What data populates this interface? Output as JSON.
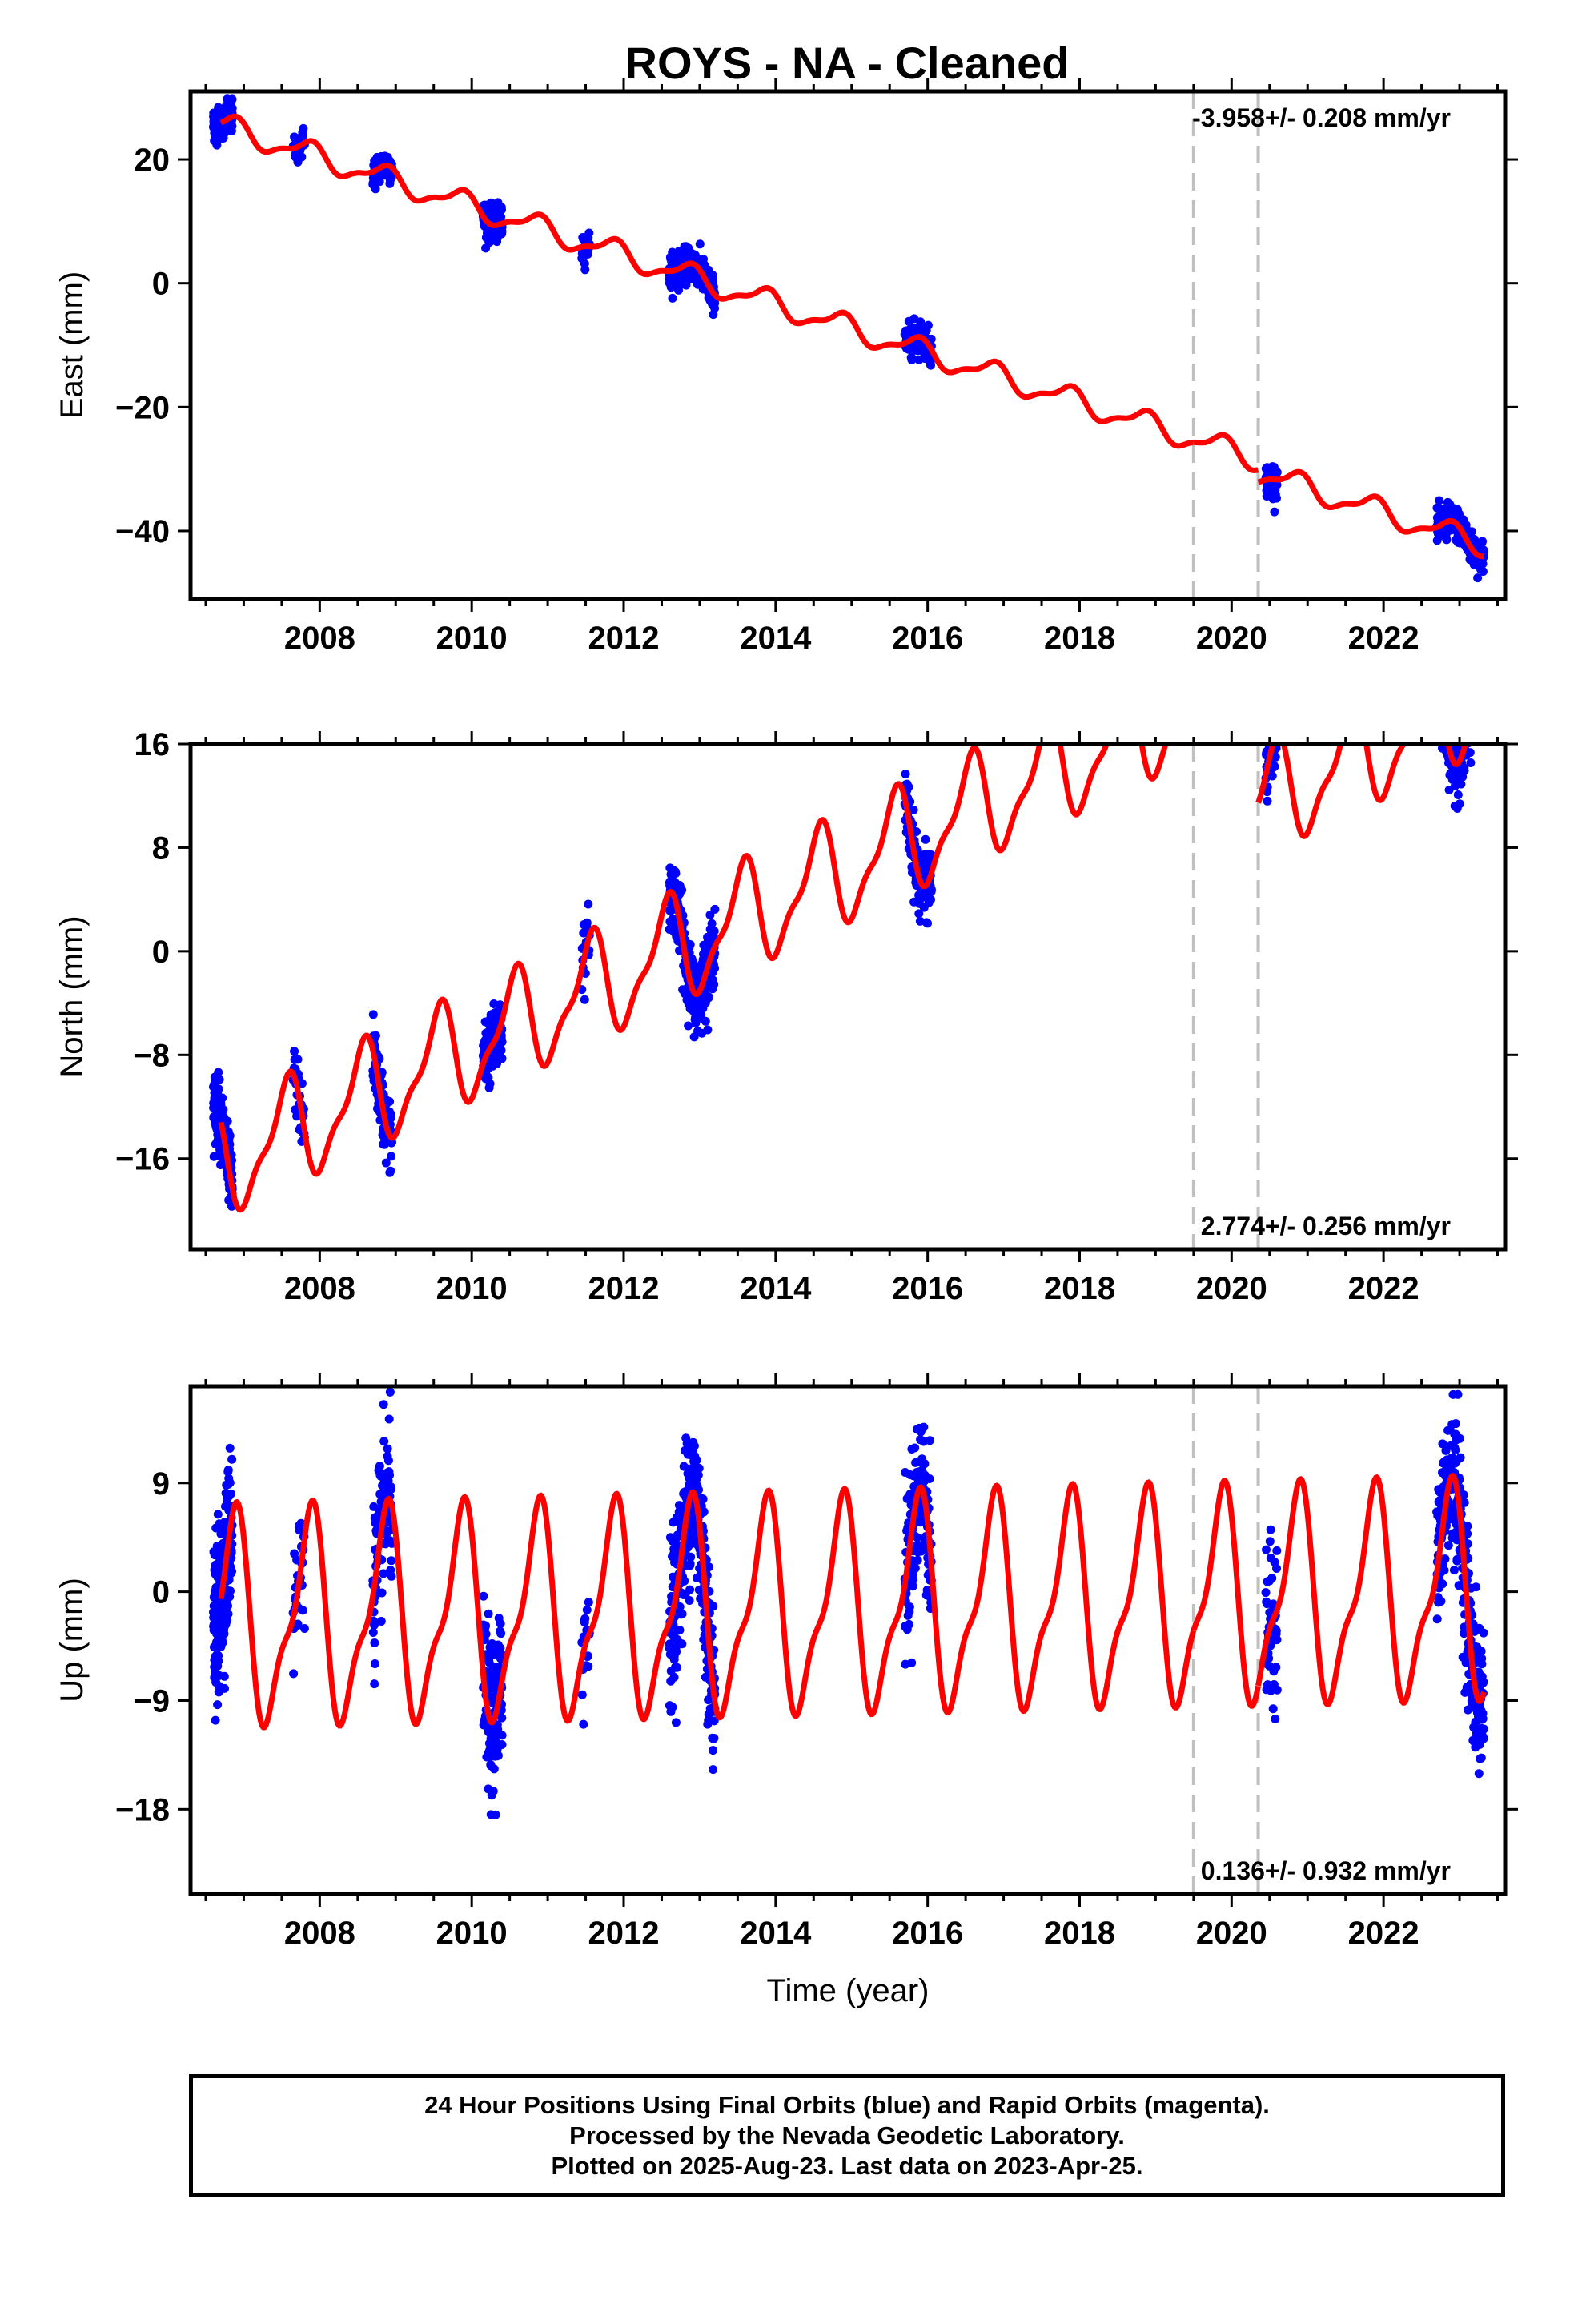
{
  "title": "ROYS  - NA - Cleaned",
  "footer": {
    "lines": [
      "24 Hour Positions Using Final Orbits (blue) and Rapid Orbits (magenta).",
      "Processed by the Nevada Geodetic Laboratory.",
      "Plotted on 2025-Aug-23. Last data on 2023-Apr-25."
    ]
  },
  "colors": {
    "data": "#0000ff",
    "model": "#ff0000",
    "step_line": "#c0c0c0",
    "frame": "#000000"
  },
  "chart_data": [
    {
      "type": "scatter",
      "component": "East",
      "ylabel": "East (mm)",
      "xlabel": "",
      "rate_text": "-3.958+/- 0.208 mm/yr",
      "rate_position": "top-right",
      "xlim": [
        2006.3,
        2023.6
      ],
      "ylim": [
        -51,
        31
      ],
      "x_ticks": [
        2008,
        2010,
        2012,
        2014,
        2016,
        2018,
        2020,
        2022
      ],
      "y_ticks": [
        -40,
        -20,
        0,
        20
      ],
      "y_tick_labels": [
        "−40",
        "−20",
        "0",
        "20"
      ],
      "steps": [
        2019.5,
        2020.35
      ],
      "rate_mm_per_yr": -3.958,
      "offset_at_2006.7": 25.5,
      "annual_amplitude_mm": 1.8,
      "annual_phase_peak_year_fraction": 0.85,
      "step_offsets": [
        0,
        -2
      ],
      "scatter_mm": 1.3,
      "data_segments": [
        [
          2006.6,
          2006.85,
          200
        ],
        [
          2007.65,
          2007.8,
          30
        ],
        [
          2008.7,
          2008.95,
          100
        ],
        [
          2010.15,
          2010.4,
          150
        ],
        [
          2011.45,
          2011.55,
          20
        ],
        [
          2012.6,
          2013.2,
          350
        ],
        [
          2015.7,
          2016.05,
          150
        ],
        [
          2020.45,
          2020.6,
          60
        ],
        [
          2022.7,
          2023.32,
          300
        ]
      ]
    },
    {
      "type": "scatter",
      "component": "North",
      "ylabel": "North (mm)",
      "xlabel": "",
      "rate_text": "2.774+/- 0.256 mm/yr",
      "rate_position": "bottom-right",
      "xlim": [
        2006.3,
        2023.6
      ],
      "ylim": [
        -23,
        16
      ],
      "x_ticks": [
        2008,
        2010,
        2012,
        2014,
        2016,
        2018,
        2020,
        2022
      ],
      "y_ticks": [
        -16,
        -8,
        0,
        8,
        16
      ],
      "y_tick_labels": [
        "−16",
        "−8",
        "0",
        "8",
        "16"
      ],
      "steps": [
        2019.5,
        2020.35
      ],
      "rate_mm_per_yr": 2.774,
      "offset_at_2006.7": -16.5,
      "annual_amplitude_mm": 3.8,
      "annual_phase_peak_year_fraction": 0.55,
      "step_offsets": [
        0,
        -10
      ],
      "scatter_mm": 1.3,
      "data_segments": [
        [
          2006.6,
          2006.85,
          200
        ],
        [
          2007.65,
          2007.8,
          30
        ],
        [
          2008.7,
          2008.95,
          100
        ],
        [
          2010.15,
          2010.4,
          150
        ],
        [
          2011.45,
          2011.55,
          20
        ],
        [
          2012.6,
          2013.2,
          350
        ],
        [
          2015.7,
          2016.05,
          150
        ],
        [
          2020.45,
          2020.6,
          60
        ],
        [
          2022.7,
          2023.32,
          300
        ]
      ]
    },
    {
      "type": "scatter",
      "component": "Up",
      "ylabel": "Up (mm)",
      "xlabel": "Time (year)",
      "rate_text": "0.136+/- 0.932 mm/yr",
      "rate_position": "bottom-right",
      "xlim": [
        2006.3,
        2023.6
      ],
      "ylim": [
        -25,
        17
      ],
      "x_ticks": [
        2008,
        2010,
        2012,
        2014,
        2016,
        2018,
        2020,
        2022
      ],
      "y_ticks": [
        -18,
        -9,
        0,
        9
      ],
      "y_tick_labels": [
        "−18",
        "−9",
        "0",
        "9"
      ],
      "steps": [
        2019.5,
        2020.35
      ],
      "rate_mm_per_yr": 0.136,
      "offset_at_2006.7": -2.5,
      "annual_amplitude_mm": 8,
      "annual_phase_peak_year_fraction": 0.85,
      "step_offsets": [
        0,
        0
      ],
      "scatter_mm": 3.2,
      "data_segments": [
        [
          2006.6,
          2006.85,
          200
        ],
        [
          2007.65,
          2007.8,
          30
        ],
        [
          2008.7,
          2008.95,
          100
        ],
        [
          2010.15,
          2010.4,
          150
        ],
        [
          2011.45,
          2011.55,
          20
        ],
        [
          2012.6,
          2013.2,
          350
        ],
        [
          2015.7,
          2016.05,
          150
        ],
        [
          2020.45,
          2020.6,
          60
        ],
        [
          2022.7,
          2023.32,
          300
        ]
      ]
    }
  ]
}
